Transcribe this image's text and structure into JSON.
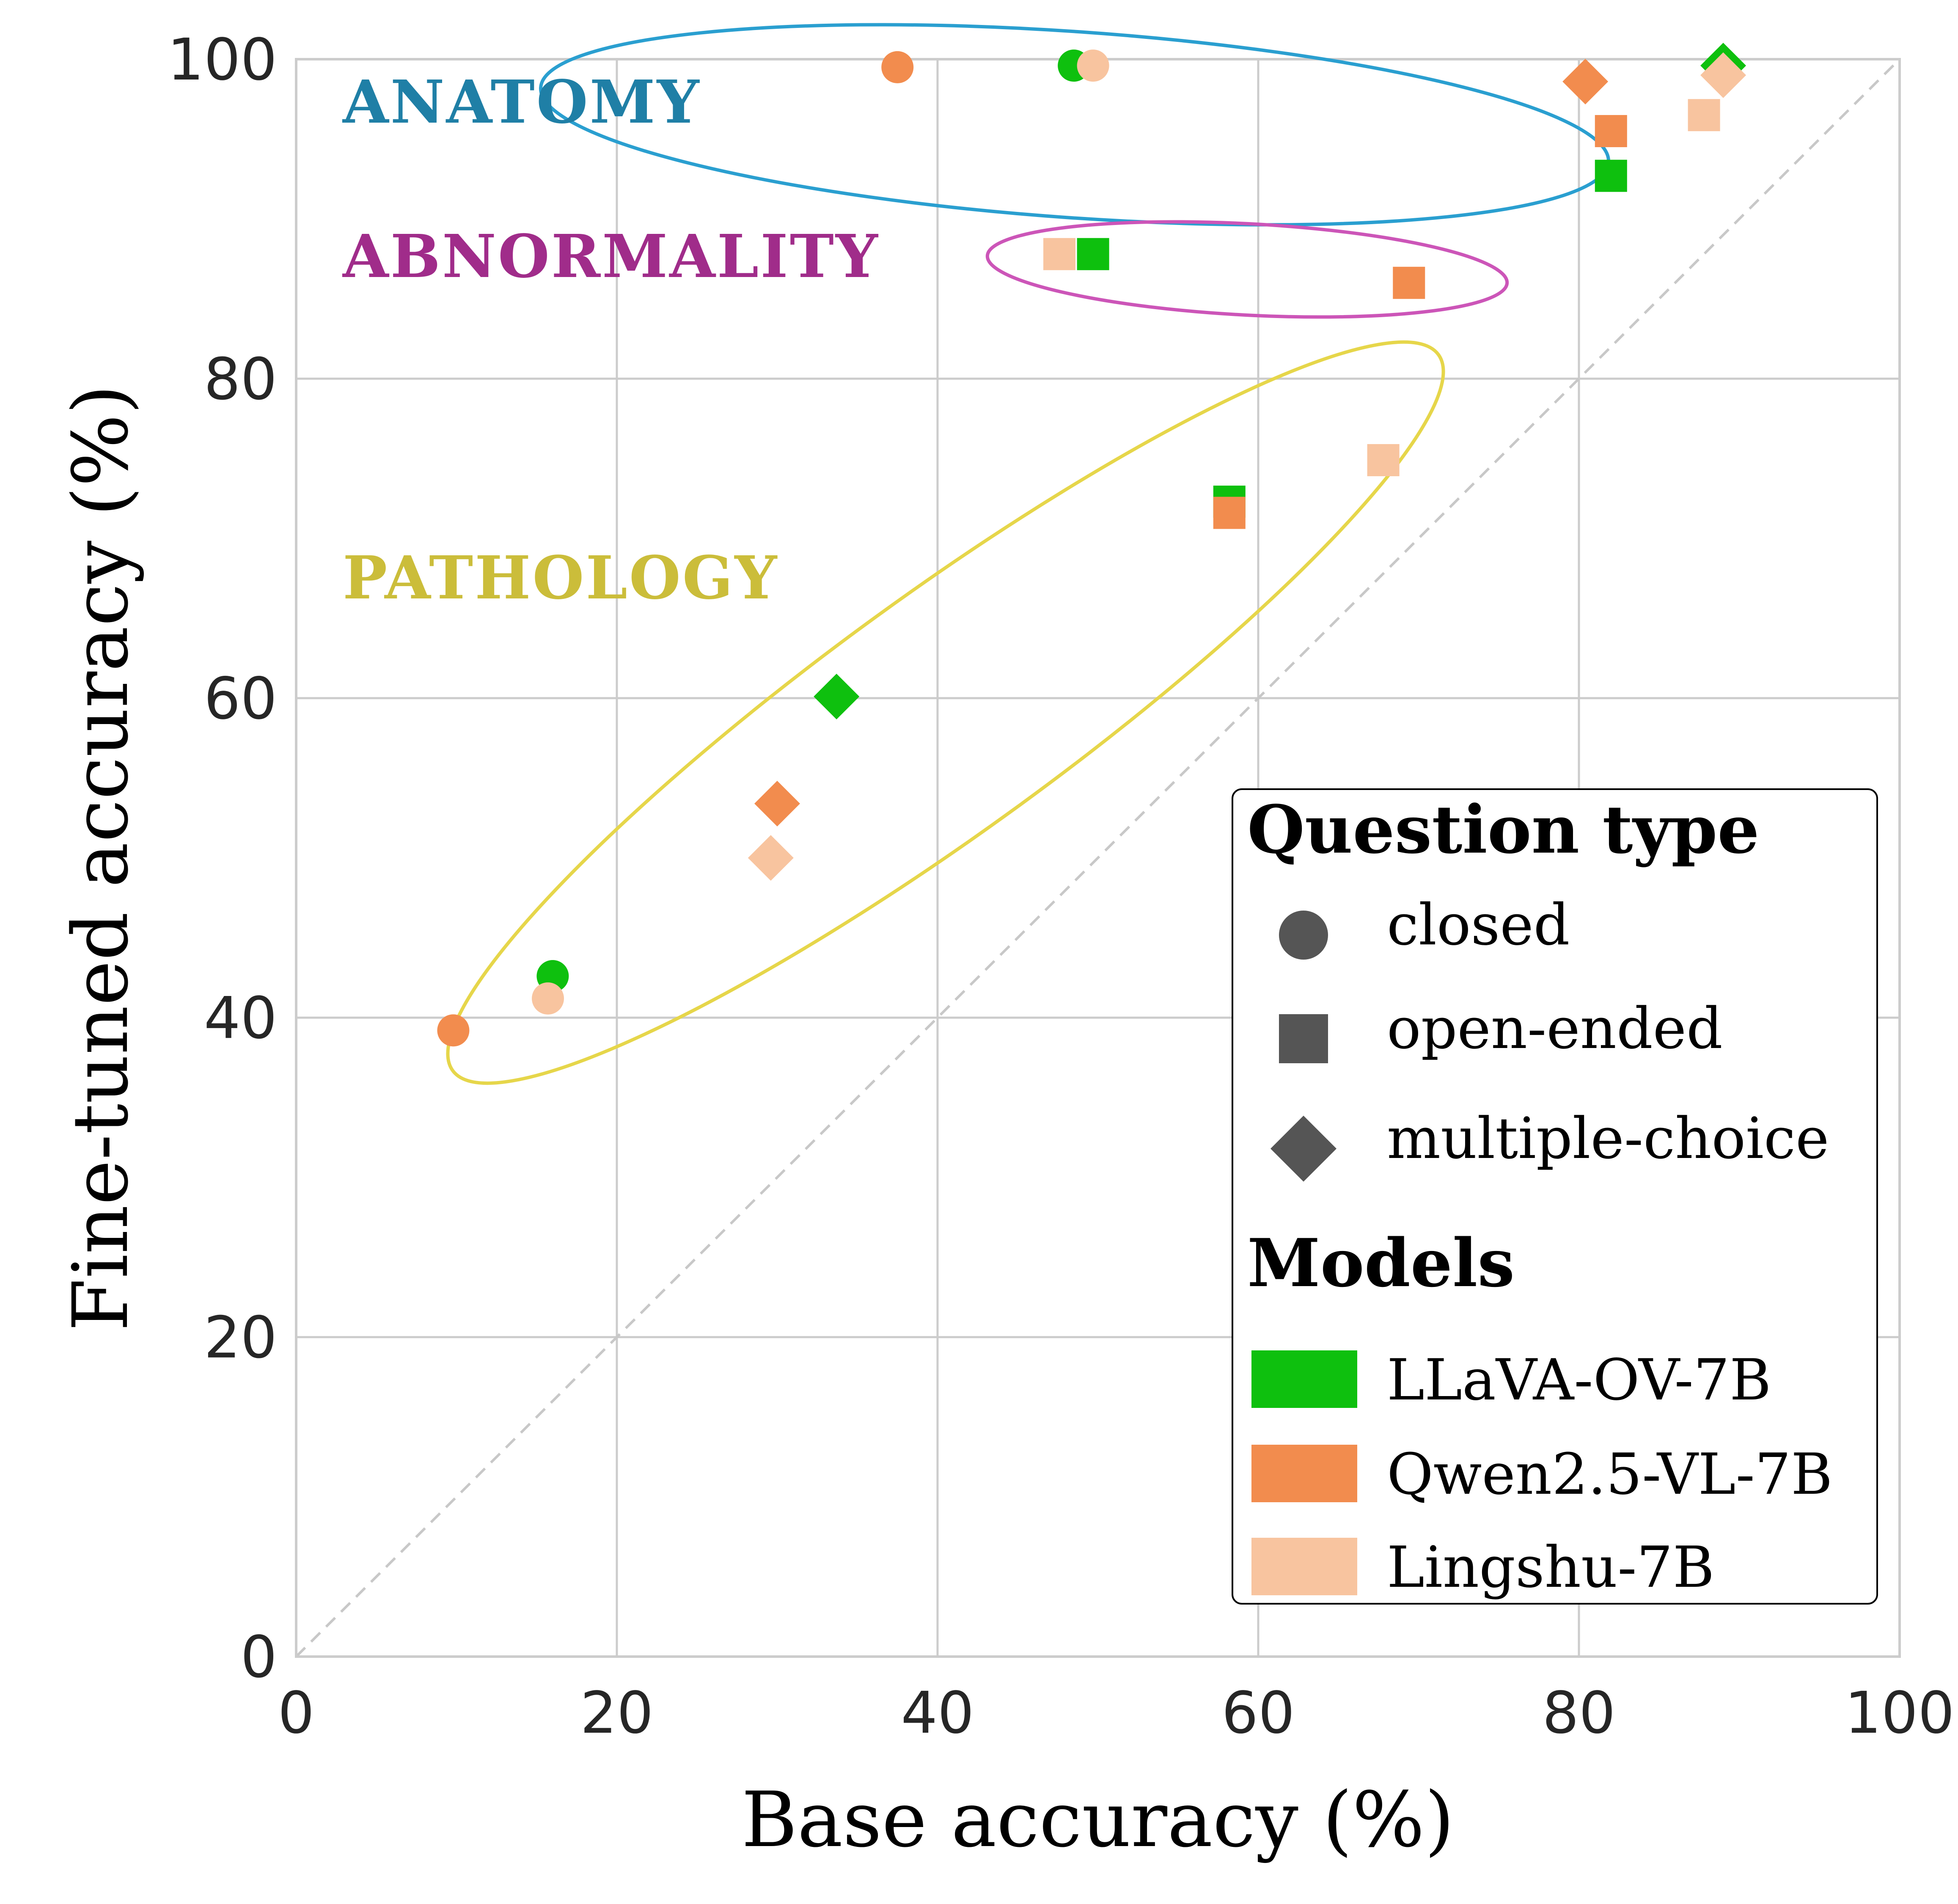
{
  "chart_data": {
    "type": "scatter",
    "xlabel": "Base accuracy (%)",
    "ylabel": "Fine-tuned accuracy (%)",
    "xlim": [
      0,
      100
    ],
    "ylim": [
      0,
      100
    ],
    "xticks": [
      "0",
      "20",
      "40",
      "60",
      "80",
      "100"
    ],
    "yticks": [
      "0",
      "20",
      "40",
      "60",
      "80",
      "100"
    ],
    "grid": true,
    "diagonal_reference": true,
    "legend_placement": "lower-right",
    "regions": [
      {
        "name": "ANATOMY",
        "color": "#2a9fd0",
        "text_color": "#1f7fa6"
      },
      {
        "name": "ABNORMALITY",
        "color": "#cc55b8",
        "text_color": "#a02c8a"
      },
      {
        "name": "PATHOLOGY",
        "color": "#e6d64a",
        "text_color": "#cbbd3a"
      }
    ],
    "marker_legend_title": "Question type",
    "markers": [
      {
        "key": "closed",
        "label": "closed",
        "shape": "circle"
      },
      {
        "key": "open",
        "label": "open-ended",
        "shape": "square"
      },
      {
        "key": "mc",
        "label": "multiple-choice",
        "shape": "diamond"
      }
    ],
    "model_legend_title": "Models",
    "series": [
      {
        "name": "LLaVA-OV-7B",
        "color": "#0ec00e",
        "points": [
          {
            "x": 48.5,
            "y": 99.6,
            "type": "closed",
            "region": "ANATOMY"
          },
          {
            "x": 89.0,
            "y": 99.6,
            "type": "mc",
            "region": "ANATOMY"
          },
          {
            "x": 82.0,
            "y": 92.7,
            "type": "open",
            "region": "ANATOMY"
          },
          {
            "x": 49.7,
            "y": 87.8,
            "type": "open",
            "region": "ABNORMALITY"
          },
          {
            "x": 58.2,
            "y": 72.3,
            "type": "open",
            "region": "PATHOLOGY"
          },
          {
            "x": 33.7,
            "y": 60.1,
            "type": "mc",
            "region": "PATHOLOGY"
          },
          {
            "x": 16.0,
            "y": 42.6,
            "type": "closed",
            "region": "PATHOLOGY"
          }
        ]
      },
      {
        "name": "Qwen2.5-VL-7B",
        "color": "#f28c4e",
        "points": [
          {
            "x": 37.5,
            "y": 99.5,
            "type": "closed",
            "region": "ANATOMY"
          },
          {
            "x": 80.4,
            "y": 98.6,
            "type": "mc",
            "region": "ANATOMY"
          },
          {
            "x": 82.0,
            "y": 95.5,
            "type": "open",
            "region": "ANATOMY"
          },
          {
            "x": 69.4,
            "y": 86.0,
            "type": "open",
            "region": "ABNORMALITY"
          },
          {
            "x": 58.2,
            "y": 71.6,
            "type": "open",
            "region": "PATHOLOGY"
          },
          {
            "x": 30.0,
            "y": 53.4,
            "type": "mc",
            "region": "PATHOLOGY"
          },
          {
            "x": 9.8,
            "y": 39.2,
            "type": "closed",
            "region": "PATHOLOGY"
          }
        ]
      },
      {
        "name": "Lingshu-7B",
        "color": "#f8c49f",
        "points": [
          {
            "x": 49.7,
            "y": 99.6,
            "type": "closed",
            "region": "ANATOMY"
          },
          {
            "x": 89.0,
            "y": 99.0,
            "type": "mc",
            "region": "ANATOMY"
          },
          {
            "x": 87.8,
            "y": 96.5,
            "type": "open",
            "region": "ANATOMY"
          },
          {
            "x": 47.6,
            "y": 87.8,
            "type": "open",
            "region": "ABNORMALITY"
          },
          {
            "x": 67.8,
            "y": 74.9,
            "type": "open",
            "region": "PATHOLOGY"
          },
          {
            "x": 29.6,
            "y": 50.0,
            "type": "mc",
            "region": "PATHOLOGY"
          },
          {
            "x": 15.7,
            "y": 41.2,
            "type": "closed",
            "region": "PATHOLOGY"
          }
        ]
      }
    ]
  }
}
